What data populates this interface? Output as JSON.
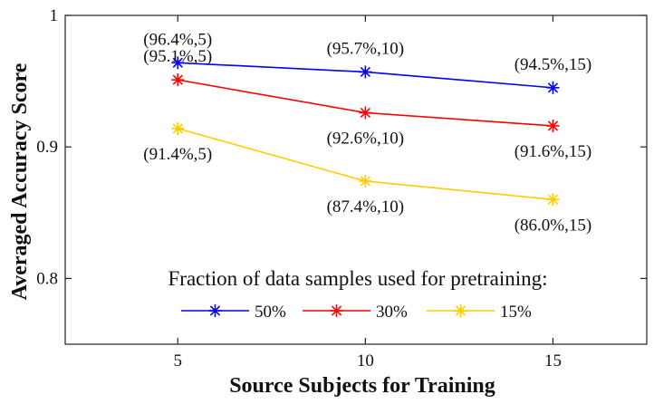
{
  "chart_data": {
    "type": "line",
    "title": "",
    "xlabel": "Source Subjects for Training",
    "ylabel": "Averaged Accuracy Score",
    "x": [
      5,
      10,
      15
    ],
    "xlim": [
      2,
      17.5
    ],
    "ylim": [
      0.75,
      1.0
    ],
    "xticks": [
      "5",
      "10",
      "15"
    ],
    "yticks": [
      {
        "value": 1.0,
        "label": "1"
      },
      {
        "value": 0.9,
        "label": "0.9"
      },
      {
        "value": 0.8,
        "label": "0.8"
      }
    ],
    "grid": false,
    "legend": {
      "title": "Fraction of data samples used for pretraining:",
      "placement": "bottom-center"
    },
    "series": [
      {
        "name": "50%",
        "color": "#0000ff",
        "values": [
          0.964,
          0.957,
          0.945
        ],
        "labels": [
          "(96.4%,5)",
          "(95.7%,10)",
          "(94.5%,15)"
        ],
        "label_positions": [
          "above",
          "above",
          "above"
        ]
      },
      {
        "name": "30%",
        "color": "#ff0000",
        "values": [
          0.951,
          0.926,
          0.916
        ],
        "labels": [
          "(95.1%,5)",
          "(92.6%,10)",
          "(91.6%,15)"
        ],
        "label_positions": [
          "above",
          "below",
          "below"
        ]
      },
      {
        "name": "15%",
        "color": "#ffcc00",
        "values": [
          0.914,
          0.874,
          0.86
        ],
        "labels": [
          "(91.4%,5)",
          "(87.4%,10)",
          "(86.0%,15)"
        ],
        "label_positions": [
          "below",
          "below",
          "below"
        ]
      }
    ]
  }
}
